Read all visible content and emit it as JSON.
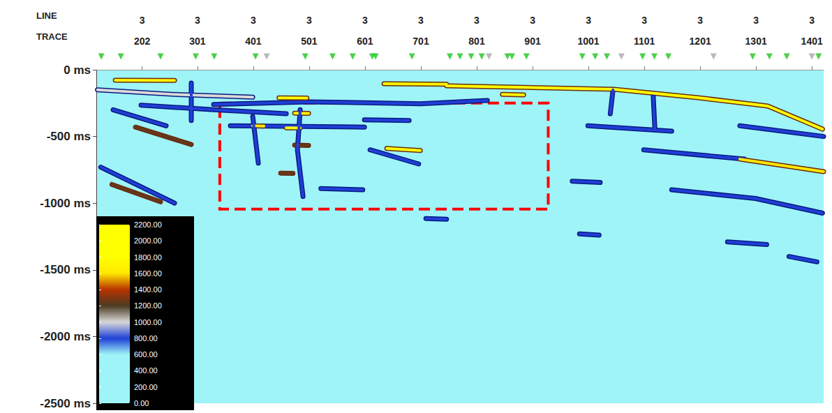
{
  "chart_data": {
    "type": "section",
    "row_labels": [
      "LINE",
      "TRACE"
    ],
    "line_number": 3,
    "xlim": [
      120,
      1422
    ],
    "xticks": [
      202,
      301,
      401,
      501,
      601,
      701,
      801,
      901,
      1001,
      1101,
      1201,
      1301,
      1401
    ],
    "ylim": [
      -2500,
      0
    ],
    "yticks": [
      {
        "value": 0,
        "label": "0 ms"
      },
      {
        "value": -500,
        "label": "-500 ms"
      },
      {
        "value": -1000,
        "label": "-1000 ms"
      },
      {
        "value": -1500,
        "label": "-1500 ms"
      },
      {
        "value": -2000,
        "label": "-2000 ms"
      },
      {
        "value": -2500,
        "label": "-2500 ms"
      }
    ],
    "background_amplitude": 400,
    "events": [
      {
        "amplitude": 2000,
        "points": [
          [
            747,
            -120
          ],
          [
            1047,
            -146
          ],
          [
            1197,
            -209
          ],
          [
            1322,
            -272
          ],
          [
            1420,
            -445
          ]
        ]
      },
      {
        "amplitude": 1700,
        "points": [
          [
            154,
            -78
          ],
          [
            260,
            -80
          ]
        ]
      },
      {
        "amplitude": 1700,
        "points": [
          [
            635,
            -105
          ],
          [
            747,
            -108
          ]
        ]
      },
      {
        "amplitude": 1000,
        "points": [
          [
            122,
            -150
          ],
          [
            260,
            -185
          ],
          [
            400,
            -205
          ]
        ]
      },
      {
        "amplitude": 800,
        "points": [
          [
            200,
            -265
          ],
          [
            330,
            -300
          ],
          [
            460,
            -330
          ]
        ]
      },
      {
        "amplitude": 800,
        "points": [
          [
            150,
            -300
          ],
          [
            245,
            -420
          ]
        ]
      },
      {
        "amplitude": 1250,
        "points": [
          [
            190,
            -430
          ],
          [
            290,
            -560
          ]
        ]
      },
      {
        "amplitude": 800,
        "points": [
          [
            128,
            -730
          ],
          [
            260,
            -1000
          ]
        ]
      },
      {
        "amplitude": 1250,
        "points": [
          [
            148,
            -860
          ],
          [
            235,
            -990
          ]
        ]
      },
      {
        "amplitude": 800,
        "points": [
          [
            610,
            -600
          ],
          [
            697,
            -706
          ]
        ]
      },
      {
        "amplitude": 2000,
        "points": [
          [
            640,
            -590
          ],
          [
            700,
            -605
          ]
        ]
      },
      {
        "amplitude": 800,
        "points": [
          [
            1100,
            -600
          ],
          [
            1280,
            -670
          ]
        ]
      },
      {
        "amplitude": 1600,
        "points": [
          [
            1272,
            -670
          ],
          [
            1422,
            -764
          ]
        ]
      },
      {
        "amplitude": 800,
        "points": [
          [
            1150,
            -900
          ],
          [
            1300,
            -965
          ],
          [
            1420,
            -1075
          ]
        ]
      },
      {
        "amplitude": 800,
        "points": [
          [
            972,
            -835
          ],
          [
            1022,
            -845
          ]
        ]
      },
      {
        "amplitude": 800,
        "points": [
          [
            1000,
            -420
          ],
          [
            1150,
            -460
          ]
        ]
      },
      {
        "amplitude": 800,
        "points": [
          [
            1272,
            -420
          ],
          [
            1422,
            -500
          ]
        ]
      },
      {
        "amplitude": 800,
        "points": [
          [
            1250,
            -1290
          ],
          [
            1320,
            -1310
          ]
        ]
      },
      {
        "amplitude": 800,
        "points": [
          [
            1360,
            -1400
          ],
          [
            1410,
            -1440
          ]
        ]
      },
      {
        "amplitude": 800,
        "points": [
          [
            985,
            -1230
          ],
          [
            1020,
            -1240
          ]
        ]
      },
      {
        "amplitude": 800,
        "points": [
          [
            330,
            -260
          ],
          [
            500,
            -240
          ],
          [
            700,
            -255
          ],
          [
            820,
            -230
          ]
        ]
      },
      {
        "amplitude": 800,
        "points": [
          [
            360,
            -420
          ],
          [
            600,
            -430
          ]
        ]
      },
      {
        "amplitude": 800,
        "points": [
          [
            600,
            -375
          ],
          [
            680,
            -380
          ]
        ]
      },
      {
        "amplitude": 1800,
        "points": [
          [
            447,
            -210
          ],
          [
            497,
            -212
          ]
        ]
      },
      {
        "amplitude": 1700,
        "points": [
          [
            475,
            -325
          ],
          [
            500,
            -327
          ]
        ]
      },
      {
        "amplitude": 1800,
        "points": [
          [
            460,
            -435
          ],
          [
            485,
            -437
          ]
        ]
      },
      {
        "amplitude": 1600,
        "points": [
          [
            400,
            -420
          ],
          [
            420,
            -422
          ]
        ]
      },
      {
        "amplitude": 1250,
        "points": [
          [
            475,
            -565
          ],
          [
            500,
            -567
          ]
        ]
      },
      {
        "amplitude": 1250,
        "points": [
          [
            450,
            -775
          ],
          [
            472,
            -777
          ]
        ]
      },
      {
        "amplitude": 800,
        "points": [
          [
            485,
            -300
          ],
          [
            480,
            -600
          ],
          [
            490,
            -950
          ]
        ]
      },
      {
        "amplitude": 800,
        "points": [
          [
            400,
            -350
          ],
          [
            410,
            -700
          ]
        ]
      },
      {
        "amplitude": 800,
        "points": [
          [
            522,
            -890
          ],
          [
            597,
            -900
          ]
        ]
      },
      {
        "amplitude": 800,
        "points": [
          [
            710,
            -1115
          ],
          [
            747,
            -1120
          ]
        ]
      },
      {
        "amplitude": 1700,
        "points": [
          [
            847,
            -185
          ],
          [
            885,
            -188
          ]
        ]
      },
      {
        "amplitude": 800,
        "points": [
          [
            1117,
            -200
          ],
          [
            1120,
            -450
          ]
        ]
      },
      {
        "amplitude": 800,
        "points": [
          [
            1045,
            -150
          ],
          [
            1040,
            -330
          ]
        ]
      },
      {
        "amplitude": 800,
        "points": [
          [
            290,
            -100
          ],
          [
            290,
            -380
          ]
        ]
      }
    ],
    "markers": [
      {
        "color": "#1fc41f",
        "traces": [
          129,
          164,
          235,
          298,
          331,
          405,
          494,
          543,
          579,
          614,
          620,
          685,
          753,
          771,
          791,
          810,
          856,
          864,
          890,
          990,
          1013,
          1034,
          1098,
          1119,
          1144,
          1295,
          1325,
          1356,
          1413
        ]
      },
      {
        "color": "#a8a8a8",
        "traces": [
          425,
          823,
          1060,
          1225,
          1401
        ]
      }
    ],
    "highlight_box": {
      "x": [
        341,
        929
      ],
      "y": [
        -1045,
        -250
      ],
      "color": "#ff0000",
      "line_style": "dashed"
    },
    "colorbar": {
      "range": [
        0,
        2200
      ],
      "ticks": [
        {
          "value": 0,
          "label": "0.00"
        },
        {
          "value": 200,
          "label": "200.00"
        },
        {
          "value": 400,
          "label": "400.00"
        },
        {
          "value": 600,
          "label": "600.00"
        },
        {
          "value": 800,
          "label": "800.00"
        },
        {
          "value": 1000,
          "label": "1000.00"
        },
        {
          "value": 1200,
          "label": "1200.00"
        },
        {
          "value": 1400,
          "label": "1400.00"
        },
        {
          "value": 1600,
          "label": "1600.00"
        },
        {
          "value": 1800,
          "label": "1800.00"
        },
        {
          "value": 2000,
          "label": "2000.00"
        },
        {
          "value": 2200,
          "label": "2200.00"
        }
      ],
      "colors": [
        "#9ef4f7",
        "#9ef4f7",
        "#9ef4f7",
        "#9ef4f7",
        "#1f3fd6",
        "#d9d9d9",
        "#4b3a22",
        "#b83200",
        "#ffe800",
        "#ffff00",
        "#ffff00",
        "#ffff00"
      ]
    }
  }
}
